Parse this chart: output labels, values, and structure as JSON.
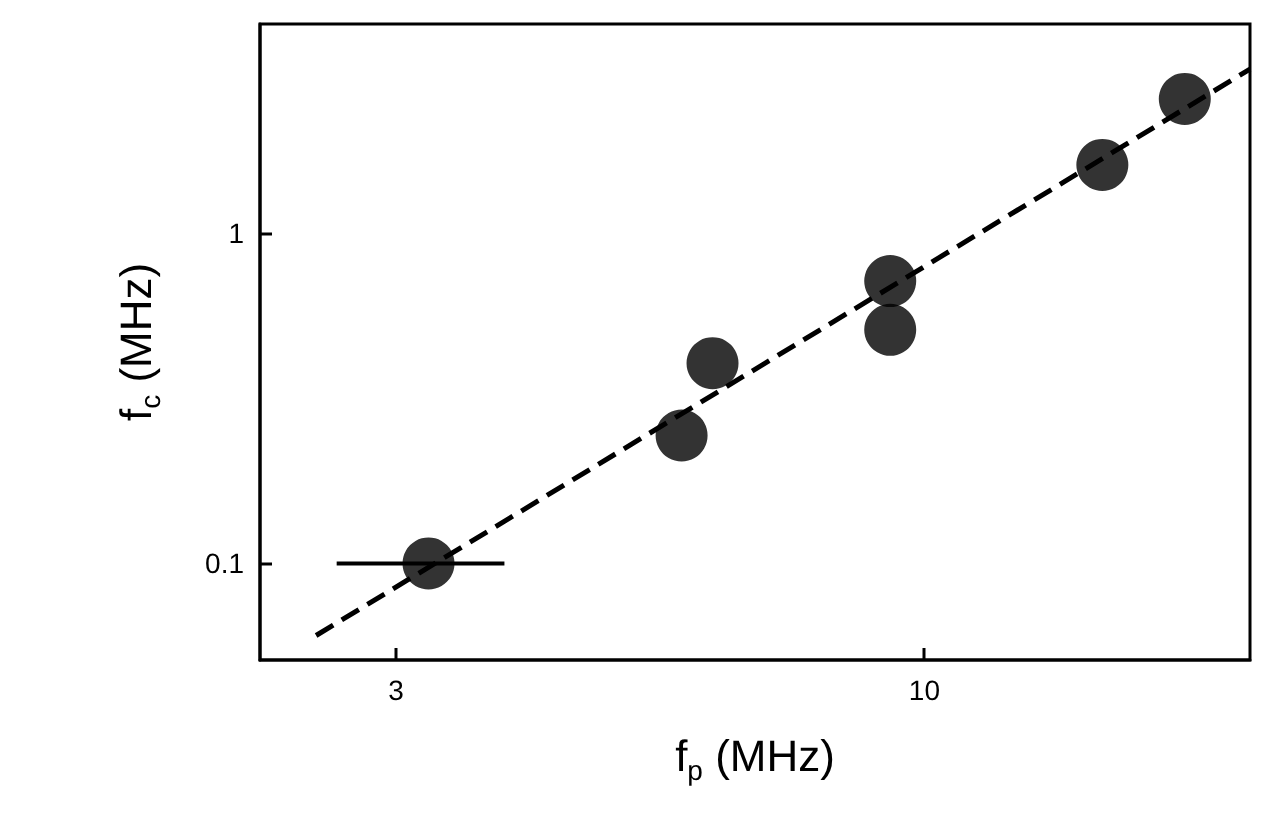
{
  "chart_data": {
    "type": "scatter",
    "xlabel": "f$_{p}$ (MHz)",
    "ylabel": "f$_{c}$ (MHz)",
    "log": "xy",
    "xlim": [
      2.2,
      21
    ],
    "ylim": [
      0.051,
      4.3
    ],
    "xticks": [
      3,
      10
    ],
    "yticks": [
      0.1,
      1
    ],
    "marker": "circle",
    "series": [
      {
        "color": "#000000",
        "x": [
          3.23,
          5.75,
          6.17,
          9.25,
          9.25,
          15.0,
          18.1
        ],
        "values": [
          0.1,
          0.244,
          0.404,
          0.716,
          0.51,
          1.61,
          2.55
        ],
        "xerrors": [
          [
            2.62,
            3.84
          ],
          null,
          null,
          null,
          null,
          null,
          null
        ]
      },
      {
        "type": "line",
        "color": "#000000",
        "line_style": "dashed",
        "marker": "none",
        "x": [
          2.5,
          21
        ],
        "values": [
          0.0605,
          3.14
        ]
      }
    ]
  }
}
